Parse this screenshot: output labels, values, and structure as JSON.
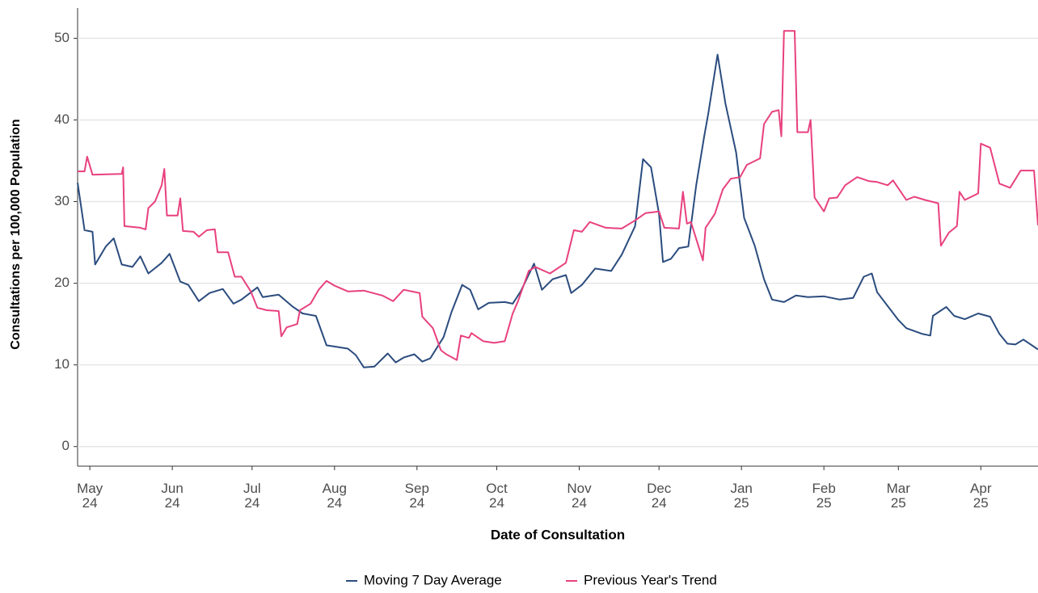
{
  "chart_data": {
    "type": "line",
    "xlabel": "Date of Consultation",
    "ylabel": "Consultations per 100,000 Population",
    "xlim": [
      -4.6,
      356.5
    ],
    "ylim": [
      -2.4,
      53.7
    ],
    "yticks": [
      0,
      10,
      20,
      30,
      40,
      50
    ],
    "xticks": [
      {
        "value": 0,
        "label": "May 24"
      },
      {
        "value": 31,
        "label": "Jun 24"
      },
      {
        "value": 61,
        "label": "Jul 24"
      },
      {
        "value": 92,
        "label": "Aug 24"
      },
      {
        "value": 123,
        "label": "Sep 24"
      },
      {
        "value": 153,
        "label": "Oct 24"
      },
      {
        "value": 184,
        "label": "Nov 24"
      },
      {
        "value": 214,
        "label": "Dec 24"
      },
      {
        "value": 245,
        "label": "Jan 25"
      },
      {
        "value": 276,
        "label": "Feb 25"
      },
      {
        "value": 304,
        "label": "Mar 25"
      },
      {
        "value": 335,
        "label": "Apr 25"
      }
    ],
    "grid": true,
    "legend": "bottom",
    "series": [
      {
        "name": "Moving 7 Day Average",
        "color": "#2b4c7e",
        "x": [
          -4.6,
          -2,
          1,
          2,
          6,
          9,
          12,
          16,
          19,
          22,
          27,
          30,
          34,
          37,
          41,
          45,
          50,
          54,
          57,
          63,
          65,
          71,
          76,
          80,
          85,
          89,
          97,
          100,
          103,
          107,
          112,
          115,
          118,
          122,
          125,
          128,
          133,
          136,
          140,
          143,
          146,
          150,
          156,
          159,
          162,
          167,
          170,
          174,
          179,
          181,
          185,
          190,
          196,
          200,
          205,
          208,
          211,
          214,
          215.5,
          218.5,
          221.5,
          225,
          228,
          231,
          232.5,
          236,
          239,
          243,
          246,
          250,
          253.5,
          256.5,
          261,
          265.5,
          270,
          276,
          282,
          287,
          291,
          294,
          296,
          300,
          304,
          307,
          313,
          316,
          317,
          322,
          325,
          329,
          334,
          338.5,
          342,
          345,
          348,
          351,
          356.5
        ],
        "values": [
          32.3,
          26.5,
          26.3,
          22.3,
          24.5,
          25.5,
          22.3,
          22.0,
          23.3,
          21.2,
          22.5,
          23.6,
          20.2,
          19.8,
          17.8,
          18.8,
          19.3,
          17.5,
          18.0,
          19.5,
          18.3,
          18.6,
          17.2,
          16.3,
          16.0,
          12.4,
          12.0,
          11.2,
          9.7,
          9.8,
          11.4,
          10.3,
          10.9,
          11.3,
          10.4,
          10.8,
          13.4,
          16.5,
          19.8,
          19.2,
          16.8,
          17.6,
          17.7,
          17.5,
          19.0,
          22.4,
          19.2,
          20.5,
          21.0,
          18.8,
          19.8,
          21.8,
          21.5,
          23.5,
          27.0,
          35.2,
          34.2,
          28.5,
          22.6,
          23.0,
          24.3,
          24.5,
          32.0,
          38.0,
          40.7,
          48.0,
          42.0,
          36.0,
          28.0,
          24.6,
          20.5,
          18.0,
          17.7,
          18.5,
          18.3,
          18.4,
          18.0,
          18.2,
          20.8,
          21.2,
          18.9,
          17.2,
          15.5,
          14.5,
          13.8,
          13.6,
          16.0,
          17.1,
          16.0,
          15.6,
          16.3,
          15.9,
          13.8,
          12.6,
          12.5,
          13.1,
          11.9
        ]
      },
      {
        "name": "Previous Year's Trend",
        "color": "#e8417e",
        "x": [
          -4.6,
          -2,
          -1,
          1,
          12,
          12.5,
          13,
          19,
          21,
          22,
          24.5,
          27,
          28,
          29,
          33,
          34,
          35,
          39,
          41,
          44,
          47,
          48,
          52,
          54.5,
          57,
          60.5,
          63,
          66.5,
          71,
          72,
          74,
          78,
          79,
          83,
          86,
          89,
          92,
          97,
          103,
          110,
          114,
          118,
          124,
          125,
          129,
          132,
          134,
          138,
          139.5,
          142.5,
          143.5,
          148,
          152,
          156,
          159,
          161,
          165,
          167.5,
          173,
          179,
          182,
          185,
          188,
          194,
          200,
          205,
          209,
          214,
          216,
          221.5,
          223,
          224.5,
          226,
          230.5,
          231.5,
          235,
          238,
          241,
          244.5,
          247,
          252,
          253.5,
          256.5,
          259,
          260,
          261,
          265,
          266,
          270,
          271,
          272.5,
          276,
          278,
          281,
          284,
          288.5,
          293,
          296,
          300,
          302,
          307,
          310,
          314,
          319,
          320,
          323,
          326,
          327,
          329,
          334,
          335,
          338.5,
          342,
          346,
          350,
          355,
          356.5
        ],
        "values": [
          33.7,
          33.7,
          35.5,
          33.3,
          33.4,
          34.2,
          27.0,
          26.8,
          26.6,
          29.2,
          30.0,
          32.0,
          34.0,
          28.3,
          28.3,
          30.4,
          26.4,
          26.3,
          25.7,
          26.5,
          26.6,
          23.8,
          23.8,
          20.8,
          20.8,
          19.0,
          17.0,
          16.7,
          16.6,
          13.5,
          14.6,
          15.0,
          16.7,
          17.5,
          19.2,
          20.3,
          19.7,
          19.0,
          19.1,
          18.5,
          17.8,
          19.2,
          18.8,
          15.9,
          14.5,
          11.8,
          11.3,
          10.6,
          13.6,
          13.3,
          13.9,
          12.9,
          12.7,
          12.9,
          16.3,
          17.8,
          21.5,
          22.0,
          21.2,
          22.5,
          26.5,
          26.3,
          27.5,
          26.8,
          26.7,
          27.7,
          28.6,
          28.8,
          26.8,
          26.7,
          31.2,
          27.3,
          27.5,
          22.8,
          26.8,
          28.5,
          31.5,
          32.8,
          33.0,
          34.5,
          35.3,
          39.5,
          41.0,
          41.2,
          38.0,
          50.9,
          50.9,
          38.5,
          38.5,
          40.0,
          30.5,
          28.8,
          30.4,
          30.5,
          32.0,
          33.0,
          32.5,
          32.4,
          32.0,
          32.6,
          30.2,
          30.6,
          30.2,
          29.8,
          24.6,
          26.2,
          27.0,
          31.2,
          30.2,
          31.0,
          37.1,
          36.6,
          32.2,
          31.7,
          33.8,
          33.8,
          27.1
        ]
      }
    ]
  }
}
